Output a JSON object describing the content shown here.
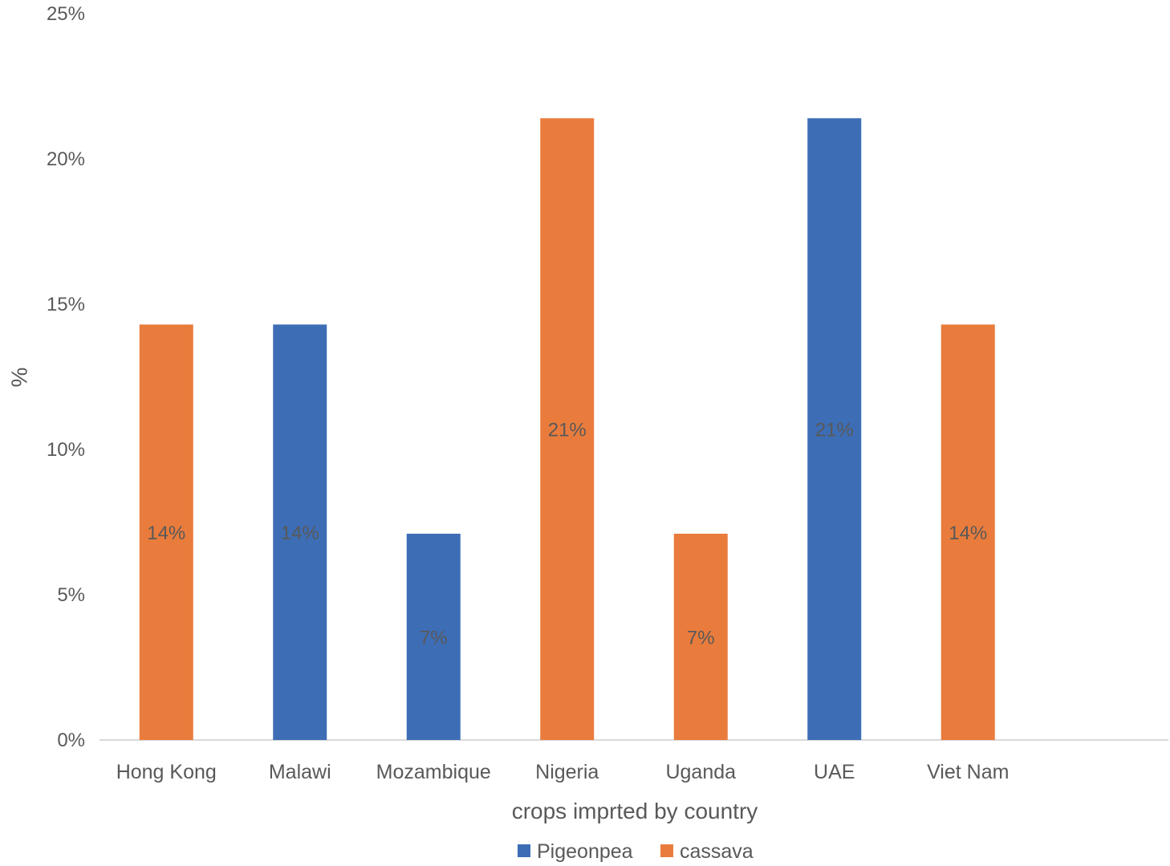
{
  "chart_data": {
    "type": "bar",
    "categories": [
      "Hong Kong",
      "Malawi",
      "Mozambique",
      "Nigeria",
      "Uganda",
      "UAE",
      "Viet Nam"
    ],
    "series": [
      {
        "name": "Pigeonpea",
        "color": "#3D6DB5"
      },
      {
        "name": "cassava",
        "color": "#E97C3C"
      }
    ],
    "bars": [
      {
        "category": "Hong Kong",
        "series": "cassava",
        "value": 14.3,
        "label": "14%"
      },
      {
        "category": "Malawi",
        "series": "Pigeonpea",
        "value": 14.3,
        "label": "14%"
      },
      {
        "category": "Mozambique",
        "series": "Pigeonpea",
        "value": 7.1,
        "label": "7%"
      },
      {
        "category": "Nigeria",
        "series": "cassava",
        "value": 21.4,
        "label": "21%"
      },
      {
        "category": "Uganda",
        "series": "cassava",
        "value": 7.1,
        "label": "7%"
      },
      {
        "category": "UAE",
        "series": "Pigeonpea",
        "value": 21.4,
        "label": "21%"
      },
      {
        "category": "Viet Nam",
        "series": "cassava",
        "value": 14.3,
        "label": "14%"
      }
    ],
    "yticks": [
      "0%",
      "5%",
      "10%",
      "15%",
      "20%",
      "25%"
    ],
    "ylim": [
      0,
      25
    ],
    "xlabel": "crops imprted by country",
    "ylabel": "%",
    "grid": false,
    "legend": "bottom-center"
  }
}
